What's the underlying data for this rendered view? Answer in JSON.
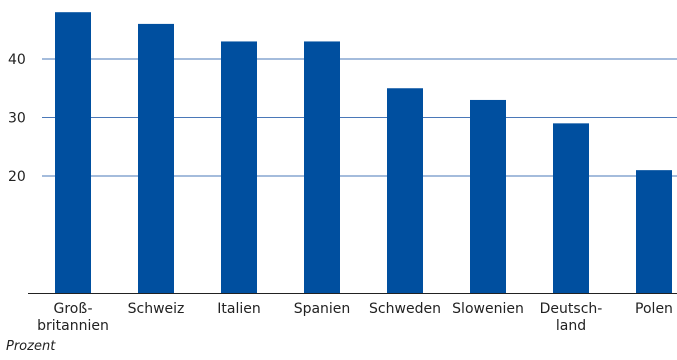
{
  "chart_data": {
    "type": "bar",
    "categories": [
      [
        "Groß-",
        "britannien"
      ],
      [
        "Schweiz"
      ],
      [
        "Italien"
      ],
      [
        "Spanien"
      ],
      [
        "Schweden"
      ],
      [
        "Slowenien"
      ],
      [
        "Deutsch-",
        "land"
      ],
      [
        "Polen"
      ]
    ],
    "values": [
      48,
      46,
      43,
      43,
      35,
      33,
      29,
      21
    ],
    "ylim": [
      0,
      49.5
    ],
    "yticks": [
      20,
      30,
      40
    ],
    "grid": true,
    "unit_label": "Prozent",
    "colors": {
      "bar": "#004F9F",
      "grid": "#4A78B8",
      "axis": "#222222"
    }
  }
}
